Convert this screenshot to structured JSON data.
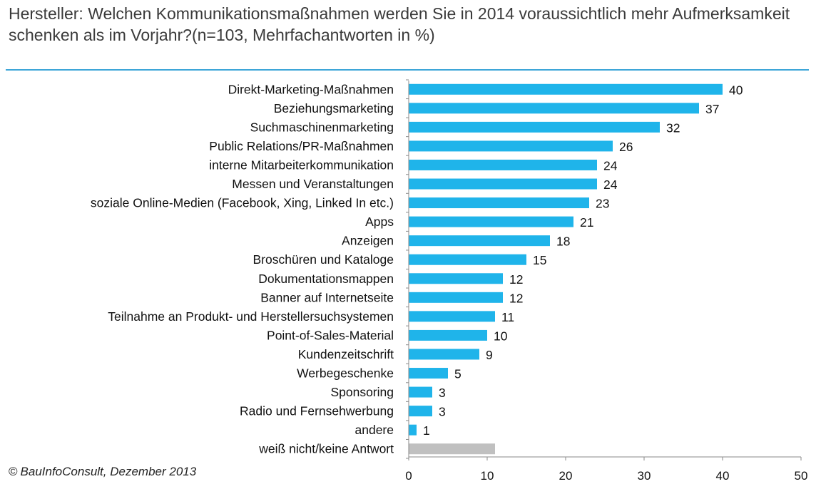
{
  "title": "Hersteller: Welchen Kommunikationsmaßnahmen werden Sie in 2014 voraussichtlich mehr Aufmerksamkeit schenken als im Vorjahr?(n=103, Mehrfachantworten in %)",
  "source": {
    "symbol": "©",
    "text": "BauInfoConsult, Dezember 2013"
  },
  "colors": {
    "bar": "#1fb4ea",
    "bar_no_answer": "#c0c0c0",
    "title_rule": "#3ea6d8"
  },
  "chart_data": {
    "type": "bar",
    "orientation": "horizontal",
    "categories": [
      "Direkt-Marketing-Maßnahmen",
      "Beziehungsmarketing",
      "Suchmaschinenmarketing",
      "Public Relations/PR-Maßnahmen",
      "interne Mitarbeiterkommunikation",
      "Messen und Veranstaltungen",
      "soziale Online-Medien (Facebook, Xing, Linked In etc.)",
      "Apps",
      "Anzeigen",
      "Broschüren und Kataloge",
      "Dokumentationsmappen",
      "Banner auf Internetseite",
      "Teilnahme an Produkt- und Herstellersuchsystemen",
      "Point-of-Sales-Material",
      "Kundenzeitschrift",
      "Werbegeschenke",
      "Sponsoring",
      "Radio und Fernsehwerbung",
      "andere",
      "weiß nicht/keine Antwort"
    ],
    "values": [
      40,
      37,
      32,
      26,
      24,
      24,
      23,
      21,
      18,
      15,
      12,
      12,
      11,
      10,
      9,
      5,
      3,
      3,
      1,
      11
    ],
    "value_labels": [
      "40",
      "37",
      "32",
      "26",
      "24",
      "24",
      "23",
      "21",
      "18",
      "15",
      "12",
      "12",
      "11",
      "10",
      "9",
      "5",
      "3",
      "3",
      "1",
      ""
    ],
    "highlight_gray": [
      "weiß nicht/keine Antwort"
    ],
    "xlim": [
      0,
      50
    ],
    "xticks": [
      "0",
      "10",
      "20",
      "30",
      "40",
      "50"
    ],
    "grid": false,
    "legend": "none"
  }
}
